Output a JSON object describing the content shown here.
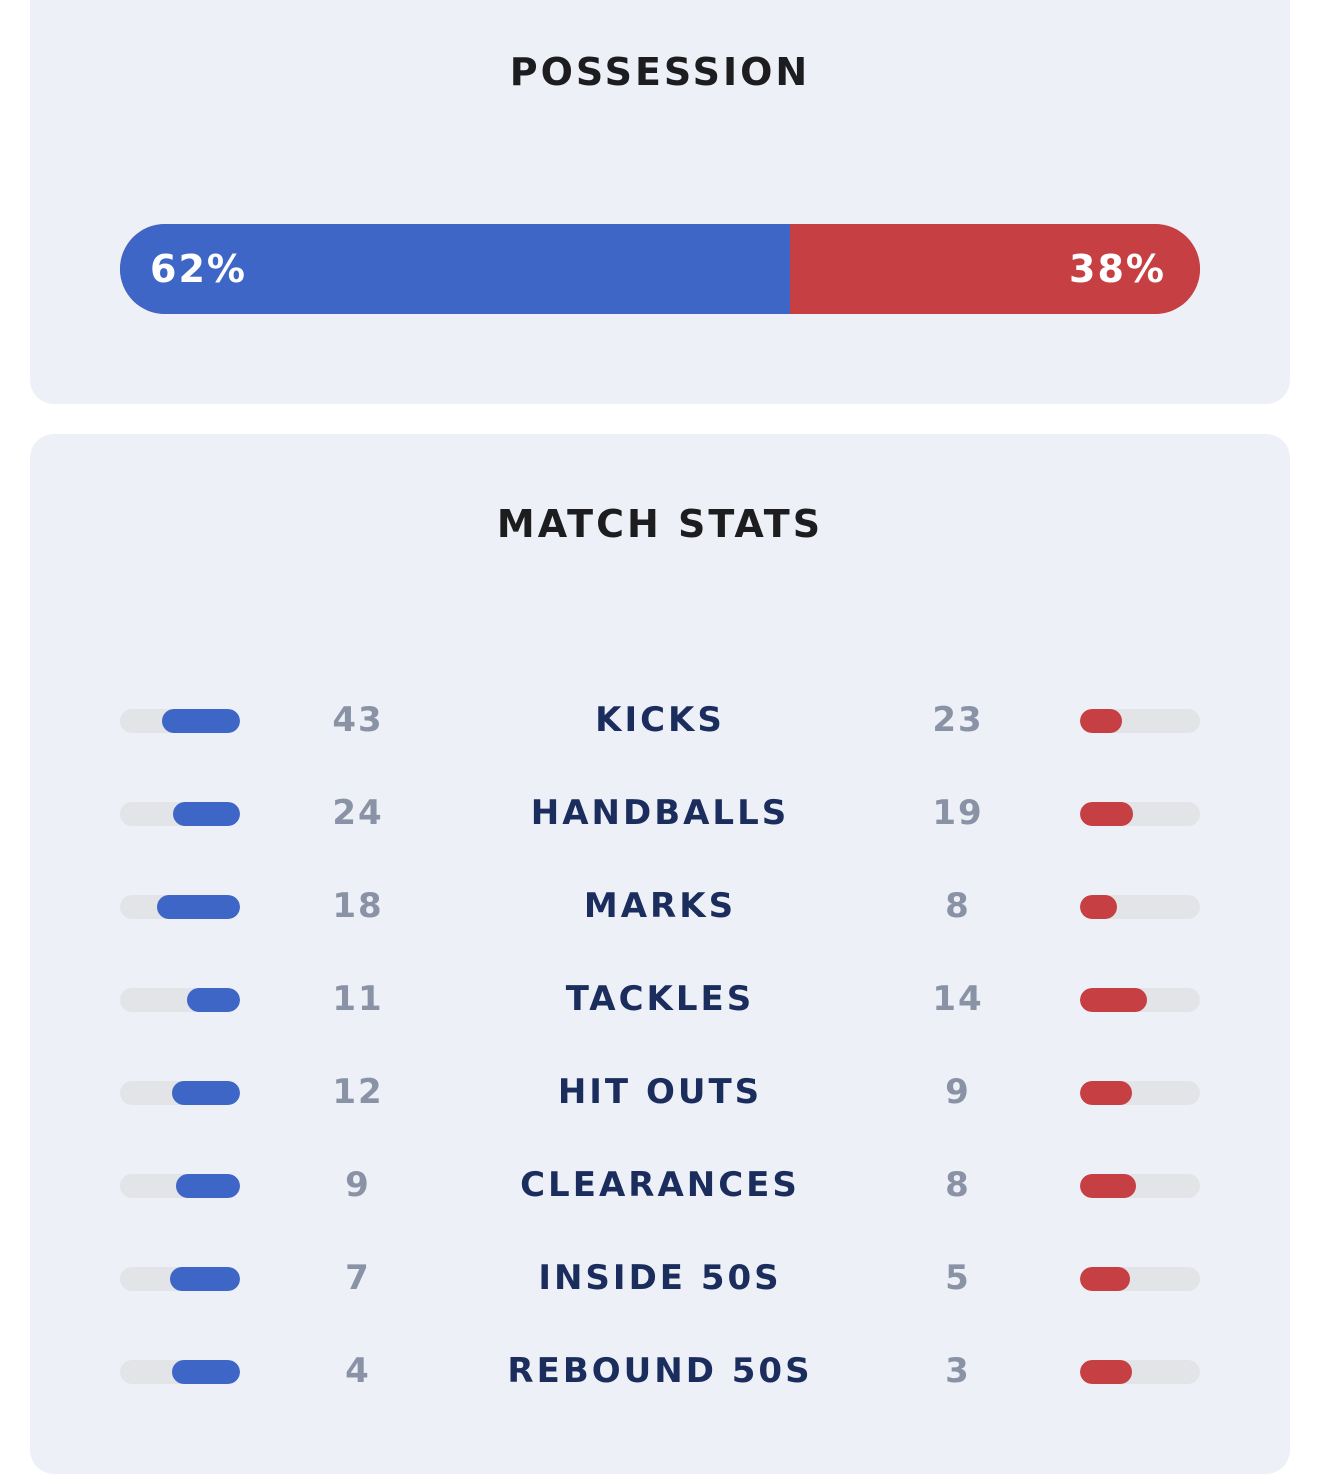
{
  "possession": {
    "title": "POSSESSION",
    "home_label": "62%",
    "away_label": "38%",
    "home_value": 62,
    "away_value": 38,
    "home_color": "#3e66c6",
    "away_color": "#c63f42"
  },
  "match_stats": {
    "title": "MATCH STATS",
    "rows": [
      {
        "label": "KICKS",
        "home": "43",
        "away": "23",
        "home_fill": 0.65,
        "away_fill": 0.35
      },
      {
        "label": "HANDBALLS",
        "home": "24",
        "away": "19",
        "home_fill": 0.56,
        "away_fill": 0.44
      },
      {
        "label": "MARKS",
        "home": "18",
        "away": "8",
        "home_fill": 0.69,
        "away_fill": 0.31
      },
      {
        "label": "TACKLES",
        "home": "11",
        "away": "14",
        "home_fill": 0.44,
        "away_fill": 0.56
      },
      {
        "label": "HIT OUTS",
        "home": "12",
        "away": "9",
        "home_fill": 0.57,
        "away_fill": 0.43
      },
      {
        "label": "CLEARANCES",
        "home": "9",
        "away": "8",
        "home_fill": 0.53,
        "away_fill": 0.47
      },
      {
        "label": "INSIDE 50S",
        "home": "7",
        "away": "5",
        "home_fill": 0.58,
        "away_fill": 0.42
      },
      {
        "label": "REBOUND 50S",
        "home": "4",
        "away": "3",
        "home_fill": 0.57,
        "away_fill": 0.43
      }
    ]
  }
}
